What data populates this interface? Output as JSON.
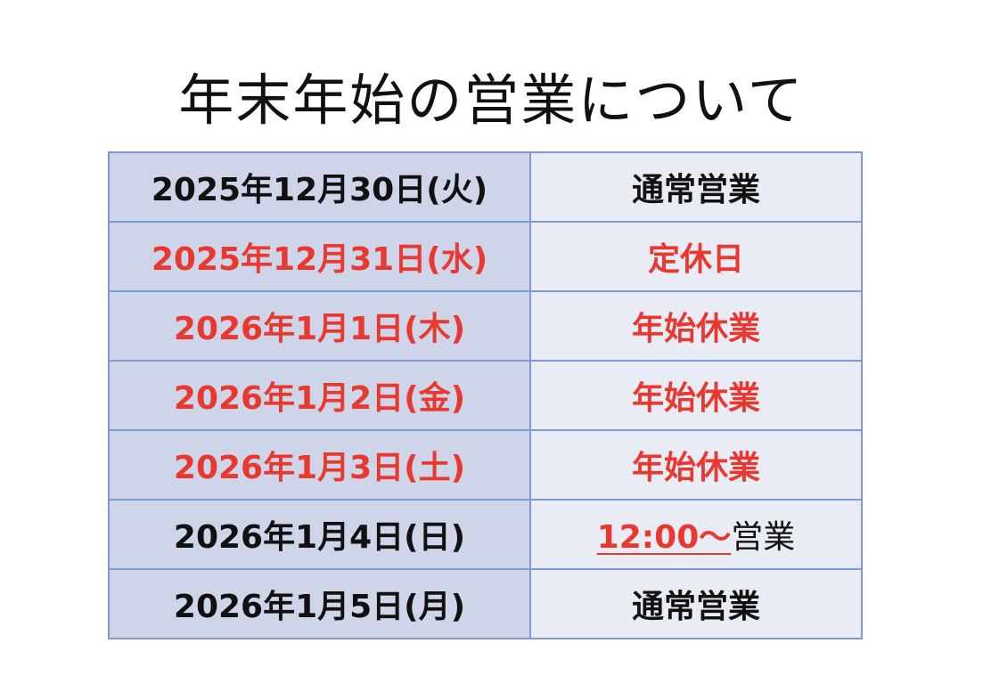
{
  "title": "年末年始の営業について",
  "colors": {
    "red": "#e8382f",
    "black": "#111111",
    "date_bg": "#cfd5e8",
    "status_bg": "#e9ebf5",
    "border": "#7f9ad2"
  },
  "rows": [
    {
      "date": "2025年12月30日(火)",
      "status": "通常営業",
      "date_color": "black",
      "status_color": "black"
    },
    {
      "date": "2025年12月31日(水)",
      "status": "定休日",
      "date_color": "red",
      "status_color": "red"
    },
    {
      "date": "2026年1月1日(木)",
      "status": "年始休業",
      "date_color": "red",
      "status_color": "red"
    },
    {
      "date": "2026年1月2日(金)",
      "status": "年始休業",
      "date_color": "red",
      "status_color": "red"
    },
    {
      "date": "2026年1月3日(土)",
      "status": "年始休業",
      "date_color": "red",
      "status_color": "red"
    },
    {
      "date": "2026年1月4日(日)",
      "status_time": "12:00～",
      "status": "営業",
      "date_color": "black",
      "status_color": "black"
    },
    {
      "date": "2026年1月5日(月)",
      "status": "通常営業",
      "date_color": "black",
      "status_color": "black"
    }
  ]
}
